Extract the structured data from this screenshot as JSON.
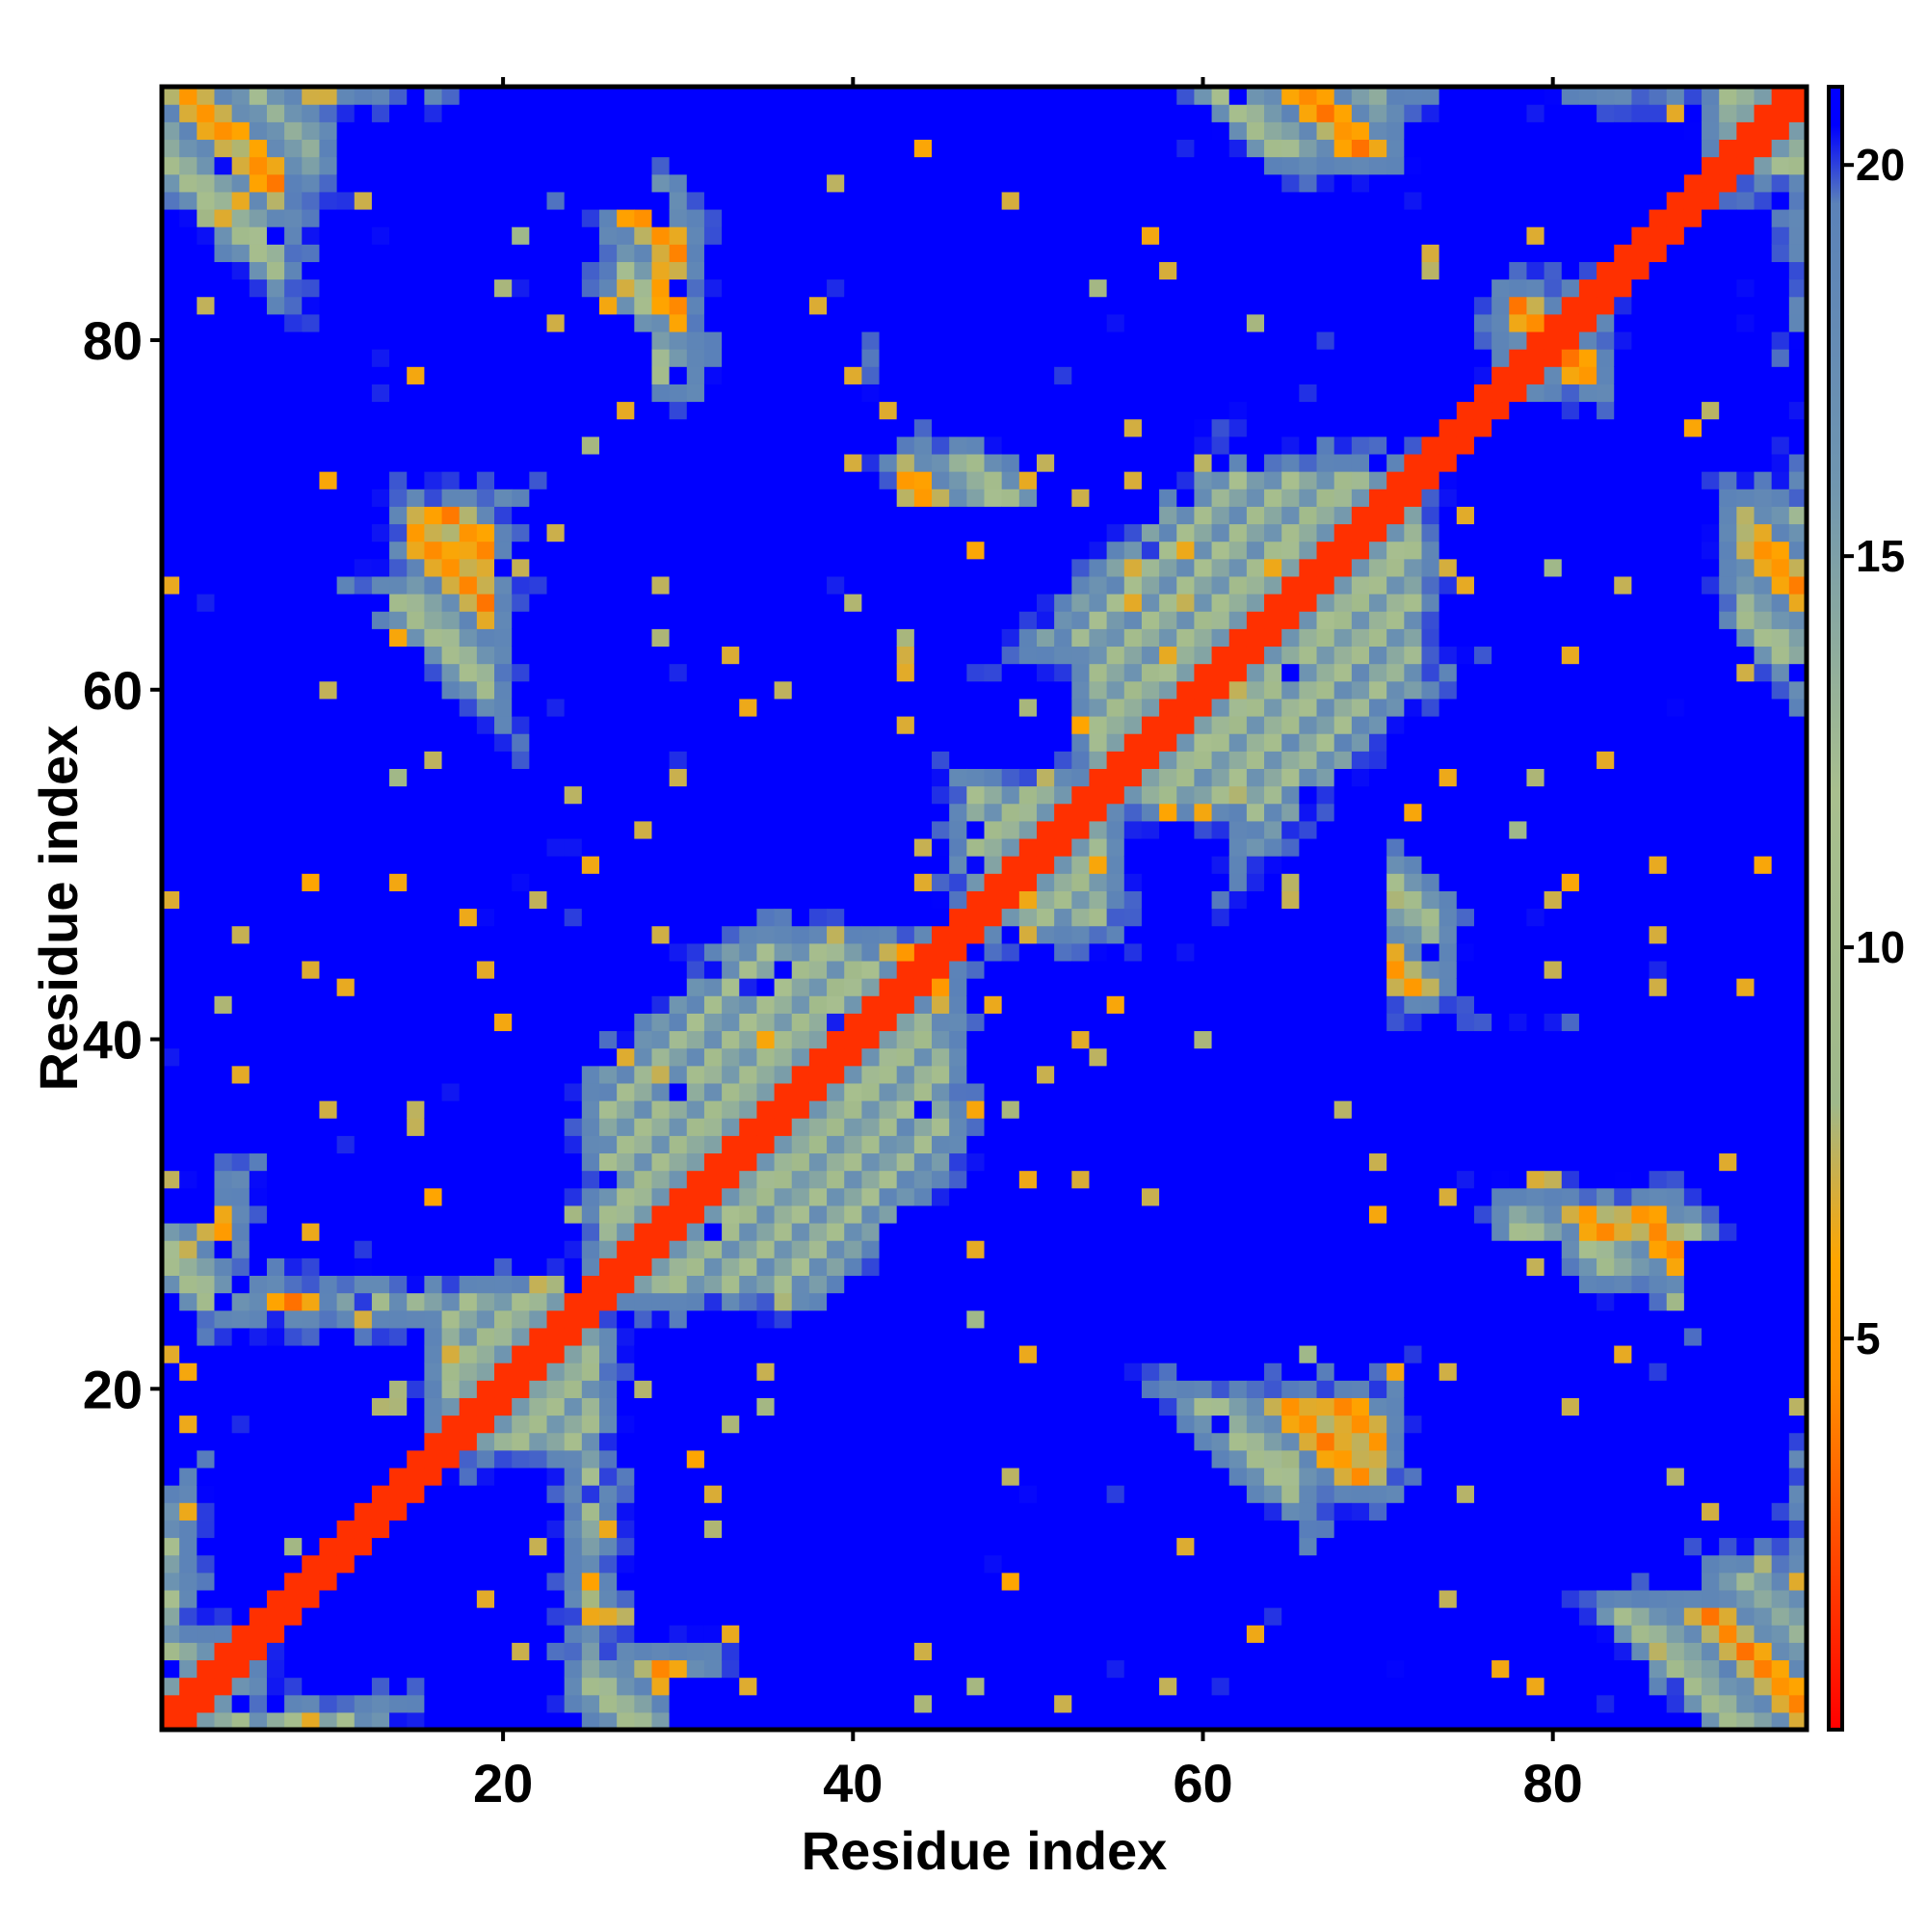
{
  "chart_data": {
    "type": "heatmap",
    "title": "",
    "xlabel": "Residue index",
    "ylabel": "Residue index",
    "xlim": [
      1,
      94
    ],
    "ylim": [
      1,
      94
    ],
    "x_ticks": [
      20,
      40,
      60,
      80
    ],
    "y_ticks": [
      20,
      40,
      60,
      80
    ],
    "colorbar": {
      "ticks": [
        5,
        10,
        15,
        20
      ],
      "range": [
        0,
        21
      ],
      "colors": [
        {
          "value": 0.0,
          "color": "#ff0000"
        },
        {
          "value": 4.5,
          "color": "#ff9000"
        },
        {
          "value": 6.0,
          "color": "#ffa500"
        },
        {
          "value": 8.0,
          "color": "#9fb88a"
        },
        {
          "value": 12.0,
          "color": "#a8bf8e"
        },
        {
          "value": 16.0,
          "color": "#6f95b0"
        },
        {
          "value": 19.5,
          "color": "#5b82b8"
        },
        {
          "value": 20.5,
          "color": "#0000ff"
        },
        {
          "value": 21.0,
          "color": "#0000ff"
        }
      ]
    },
    "values_description_note": "",
    "series": [
      {
        "name": "",
        "kind": "distance_map",
        "n_residues": 94,
        "contact_bands": [
          {
            "type": "anti",
            "sum": 33,
            "x_range": [
              5,
              28
            ]
          },
          {
            "type": "anti",
            "sum": 96,
            "x_range": [
              2,
              13
            ]
          },
          {
            "type": "anti",
            "sum": 87,
            "x_range": [
              14,
              28
            ]
          },
          {
            "type": "anti",
            "sum": 112,
            "x_range": [
              30,
              38
            ]
          },
          {
            "type": "anti",
            "sum": 90,
            "x_range": [
              48,
              66
            ]
          },
          {
            "type": "anti",
            "sum": 84,
            "x_range": [
              56,
              69
            ]
          },
          {
            "type": "anti",
            "sum": 160,
            "x_range": [
              71,
              94
            ]
          },
          {
            "type": "anti",
            "sum": 115,
            "x_range": [
              72,
              86
            ]
          },
          {
            "type": "anti",
            "sum": 104,
            "x_range": [
              86,
              94
            ]
          },
          {
            "type": "anti",
            "sum": 88,
            "x_range": [
              36,
              52
            ]
          },
          {
            "type": "parallel",
            "offset": 18,
            "x_range": [
              3,
              7
            ]
          }
        ],
        "blue_blocks": [
          [
            8,
            26,
            71,
            89
          ],
          [
            31,
            42,
            71,
            89
          ],
          [
            61,
            77,
            73,
            90
          ],
          [
            83,
            94,
            71,
            89
          ],
          [
            20,
            38,
            47,
            73
          ],
          [
            46,
            66,
            27,
            46
          ],
          [
            55,
            62,
            38,
            53
          ],
          [
            74,
            90,
            40,
            60
          ],
          [
            5,
            25,
            26,
            43
          ],
          [
            6,
            24,
            2,
            16
          ],
          [
            32,
            48,
            2,
            20
          ],
          [
            61,
            77,
            26,
            42
          ],
          [
            46,
            55,
            2,
            15
          ],
          [
            82,
            94,
            10,
            24
          ],
          [
            66,
            80,
            3,
            14
          ],
          [
            21,
            35,
            56,
            66
          ]
        ]
      }
    ]
  }
}
